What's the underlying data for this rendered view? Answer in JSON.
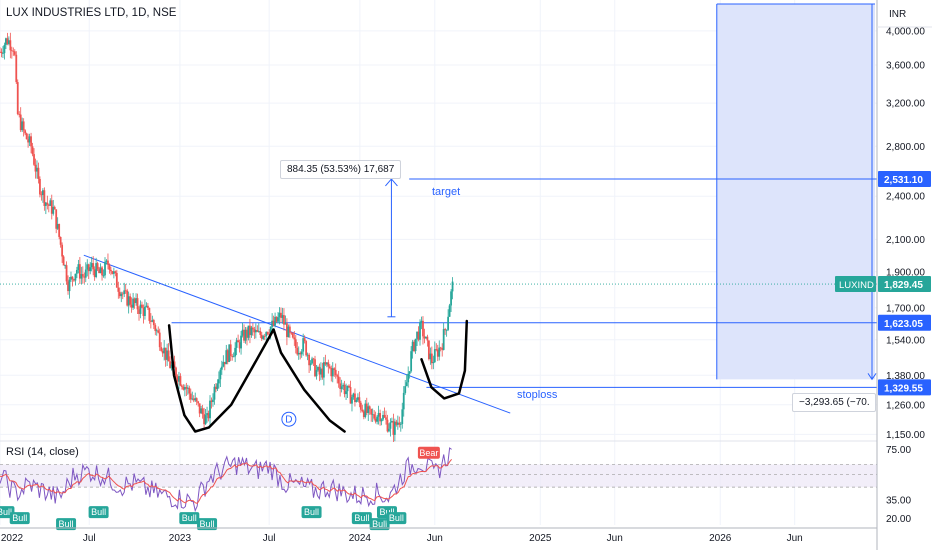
{
  "header": {
    "symbol_title": "LUX INDUSTRIES LTD, 1D, NSE",
    "currency": "INR"
  },
  "rsi_panel": {
    "title": "RSI (14, close)",
    "levels": [
      75.0,
      35.0,
      20.0
    ],
    "band": [
      63,
      45
    ]
  },
  "annotations": {
    "measure_box": "884.35 (53.53%) 17,687",
    "target_label": "target",
    "stoploss_label": "stoploss",
    "loss_box": "−3,293.65 (−70.",
    "pattern_marker": "D",
    "bull_badge": "Bull",
    "bear_badge": "Bear"
  },
  "price_badges": {
    "target": {
      "value": "2,531.10",
      "color": "#2962ff"
    },
    "current": {
      "symbol": "LUXIND",
      "value": "1,829.45",
      "color": "#26a69a"
    },
    "neckline": {
      "value": "1,623.05",
      "color": "#2962ff"
    },
    "stoploss": {
      "value": "1,329.55",
      "color": "#2962ff"
    }
  },
  "chart_data": {
    "type": "candlestick",
    "title": "LUX INDUSTRIES LTD, 1D, NSE",
    "y_scale": "log",
    "ylim": [
      1130,
      4400
    ],
    "y_ticks": [
      "4,000.00",
      "3,600.00",
      "3,200.00",
      "2,800.00",
      "2,400.00",
      "2,100.00",
      "1,900.00",
      "1,700.00",
      "1,540.00",
      "1,380.00",
      "1,260.00",
      "1,150.00"
    ],
    "y_tick_values": [
      4000,
      3600,
      3200,
      2800,
      2400,
      2100,
      1900,
      1700,
      1540,
      1380,
      1260,
      1150
    ],
    "x_ticks": [
      "2022",
      "Jul",
      "2023",
      "Jul",
      "2024",
      "Jun",
      "2025",
      "Jun",
      "2026",
      "Jun"
    ],
    "x_tick_dates": [
      "2022-01-01",
      "2022-07-01",
      "2023-01-01",
      "2023-07-01",
      "2024-01-01",
      "2024-06-01",
      "2025-01-01",
      "2025-06-01",
      "2026-01-01",
      "2026-06-01"
    ],
    "x_range": [
      "2022-01-01",
      "2026-11-15"
    ],
    "close_path": [
      [
        "2022-01-01",
        3750
      ],
      [
        "2022-01-15",
        3900
      ],
      [
        "2022-01-30",
        3800
      ],
      [
        "2022-02-05",
        3100
      ],
      [
        "2022-02-20",
        2900
      ],
      [
        "2022-03-05",
        2800
      ],
      [
        "2022-03-20",
        2500
      ],
      [
        "2022-04-05",
        2350
      ],
      [
        "2022-04-20",
        2300
      ],
      [
        "2022-05-05",
        2050
      ],
      [
        "2022-05-20",
        1820
      ],
      [
        "2022-06-05",
        1920
      ],
      [
        "2022-06-20",
        1870
      ],
      [
        "2022-07-05",
        1930
      ],
      [
        "2022-07-25",
        1880
      ],
      [
        "2022-08-10",
        1960
      ],
      [
        "2022-08-25",
        1840
      ],
      [
        "2022-09-10",
        1760
      ],
      [
        "2022-09-25",
        1730
      ],
      [
        "2022-10-10",
        1700
      ],
      [
        "2022-10-25",
        1680
      ],
      [
        "2022-11-10",
        1610
      ],
      [
        "2022-11-25",
        1520
      ],
      [
        "2022-12-10",
        1430
      ],
      [
        "2022-12-25",
        1390
      ],
      [
        "2023-01-10",
        1340
      ],
      [
        "2023-01-25",
        1290
      ],
      [
        "2023-02-10",
        1240
      ],
      [
        "2023-02-25",
        1200
      ],
      [
        "2023-03-10",
        1310
      ],
      [
        "2023-03-25",
        1430
      ],
      [
        "2023-04-10",
        1480
      ],
      [
        "2023-04-25",
        1500
      ],
      [
        "2023-05-10",
        1560
      ],
      [
        "2023-05-25",
        1580
      ],
      [
        "2023-06-10",
        1560
      ],
      [
        "2023-06-25",
        1590
      ],
      [
        "2023-07-10",
        1610
      ],
      [
        "2023-07-25",
        1660
      ],
      [
        "2023-08-10",
        1560
      ],
      [
        "2023-08-25",
        1500
      ],
      [
        "2023-09-10",
        1520
      ],
      [
        "2023-09-25",
        1430
      ],
      [
        "2023-10-10",
        1380
      ],
      [
        "2023-10-25",
        1420
      ],
      [
        "2023-11-10",
        1390
      ],
      [
        "2023-11-25",
        1340
      ],
      [
        "2023-12-10",
        1300
      ],
      [
        "2023-12-25",
        1280
      ],
      [
        "2024-01-10",
        1240
      ],
      [
        "2024-01-25",
        1210
      ],
      [
        "2024-02-10",
        1230
      ],
      [
        "2024-02-25",
        1190
      ],
      [
        "2024-03-10",
        1170
      ],
      [
        "2024-03-25",
        1220
      ],
      [
        "2024-04-05",
        1350
      ],
      [
        "2024-04-15",
        1480
      ],
      [
        "2024-04-25",
        1560
      ],
      [
        "2024-05-05",
        1600
      ],
      [
        "2024-05-15",
        1520
      ],
      [
        "2024-05-25",
        1440
      ],
      [
        "2024-06-05",
        1480
      ],
      [
        "2024-06-15",
        1520
      ],
      [
        "2024-06-25",
        1620
      ],
      [
        "2024-07-01",
        1730
      ],
      [
        "2024-07-08",
        1829.45
      ]
    ],
    "current_price": 1829.45,
    "levels": {
      "target": 2531.1,
      "neckline": 1623.05,
      "stoploss": 1329.55
    },
    "rsi_series": [
      [
        "2022-01-01",
        55
      ],
      [
        "2022-02-01",
        40
      ],
      [
        "2022-03-01",
        47
      ],
      [
        "2022-04-01",
        42
      ],
      [
        "2022-05-01",
        36
      ],
      [
        "2022-06-01",
        55
      ],
      [
        "2022-07-01",
        58
      ],
      [
        "2022-08-01",
        54
      ],
      [
        "2022-09-01",
        46
      ],
      [
        "2022-10-01",
        48
      ],
      [
        "2022-11-01",
        42
      ],
      [
        "2022-12-01",
        38
      ],
      [
        "2023-01-01",
        36
      ],
      [
        "2023-02-01",
        33
      ],
      [
        "2023-03-01",
        52
      ],
      [
        "2023-04-01",
        60
      ],
      [
        "2023-05-01",
        64
      ],
      [
        "2023-06-01",
        58
      ],
      [
        "2023-07-01",
        62
      ],
      [
        "2023-08-01",
        48
      ],
      [
        "2023-09-01",
        46
      ],
      [
        "2023-10-01",
        42
      ],
      [
        "2023-11-01",
        45
      ],
      [
        "2023-12-01",
        40
      ],
      [
        "2024-01-01",
        38
      ],
      [
        "2024-02-01",
        40
      ],
      [
        "2024-03-01",
        37
      ],
      [
        "2024-04-01",
        58
      ],
      [
        "2024-05-01",
        66
      ],
      [
        "2024-06-01",
        55
      ],
      [
        "2024-07-01",
        72
      ]
    ],
    "bull_signals": [
      "2022-01-10",
      "2022-02-10",
      "2022-05-15",
      "2022-07-20",
      "2023-01-20",
      "2023-02-25",
      "2023-09-25",
      "2024-01-05",
      "2024-02-10",
      "2024-02-25",
      "2024-03-15"
    ],
    "bear_signals": [
      "2024-05-20"
    ]
  }
}
